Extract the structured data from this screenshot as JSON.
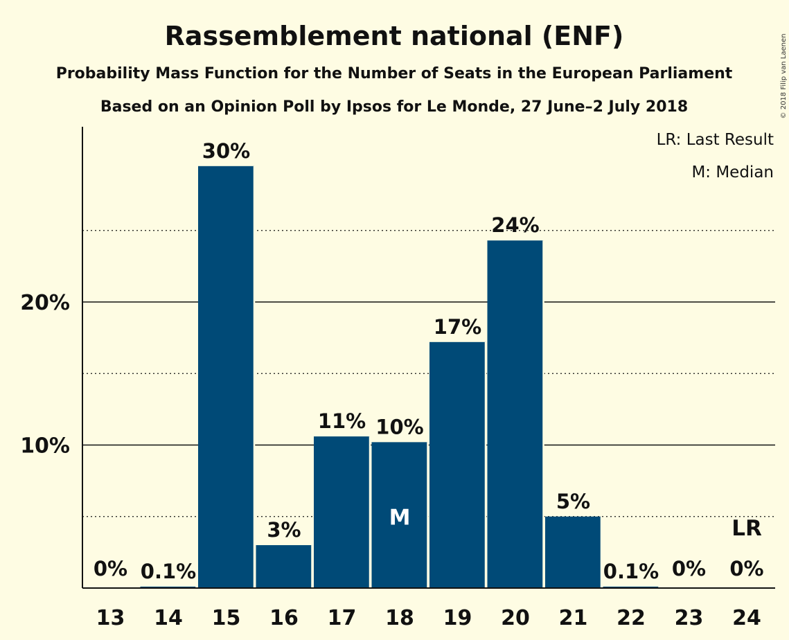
{
  "chart_data": {
    "type": "bar",
    "title": "Rassemblement national (ENF)",
    "subtitle": "Probability Mass Function for the Number of Seats in the European Parliament",
    "subtitle2": "Based on an Opinion Poll by Ipsos for Le Monde, 27 June–2 July 2018",
    "copyright": "© 2018 Filip van Laenen",
    "legend": [
      "LR: Last Result",
      "M: Median"
    ],
    "categories": [
      "13",
      "14",
      "15",
      "16",
      "17",
      "18",
      "19",
      "20",
      "21",
      "22",
      "23",
      "24"
    ],
    "values": [
      0,
      0.1,
      29.5,
      3,
      10.6,
      10.2,
      17.2,
      24.3,
      5,
      0.1,
      0,
      0
    ],
    "labels": [
      "0%",
      "0.1%",
      "30%",
      "3%",
      "11%",
      "10%",
      "17%",
      "24%",
      "5%",
      "0.1%",
      "0%",
      "0%"
    ],
    "median_category": "18",
    "median_marker": "M",
    "last_result_category": "24",
    "last_result_marker": "LR",
    "yticks": [
      10,
      20
    ],
    "ytick_labels": [
      "10%",
      "20%"
    ],
    "dotted_gridlines": [
      5,
      15,
      25
    ],
    "ylim": [
      0,
      32
    ],
    "bar_color": "#004A77",
    "background_color": "#FEFCE3"
  }
}
